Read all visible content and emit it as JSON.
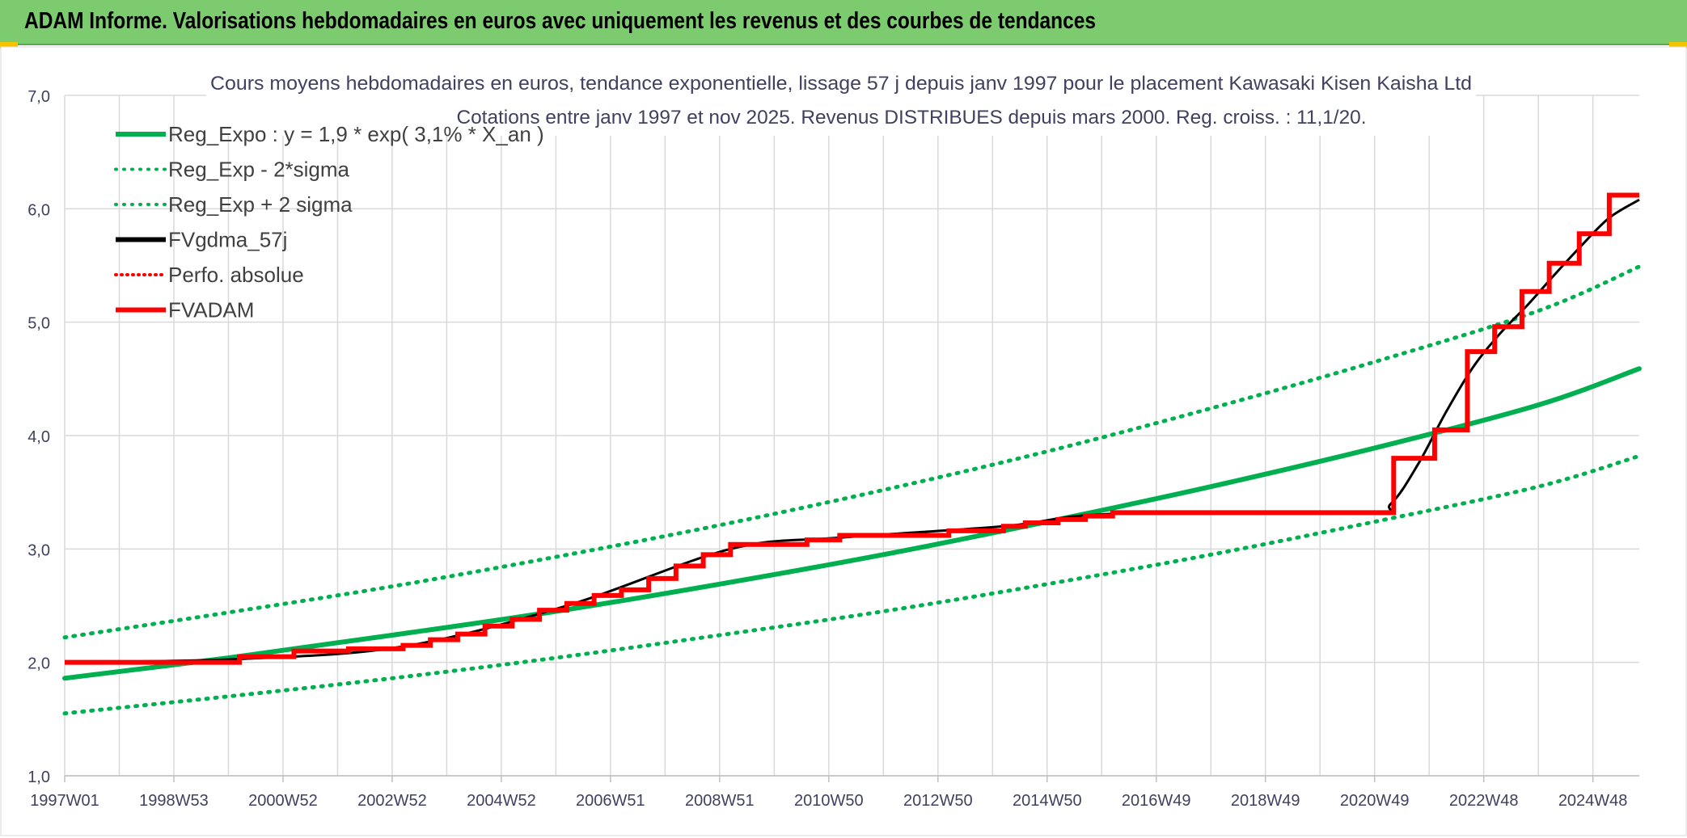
{
  "header": {
    "title": "ADAM Informe. Valorisations hebdomadaires en euros avec uniquement les revenus et des courbes de tendances"
  },
  "colors": {
    "banner": "#7ccb6e",
    "trend": "#00b050",
    "fv57": "#000000",
    "fvadam": "#ff0000",
    "grid": "#d9d9d9"
  },
  "chart_data": {
    "type": "line",
    "title": "Cours moyens hebdomadaires en euros, tendance exponentielle, lissage 57 j depuis janv 1997 pour le placement Kawasaki Kisen Kaisha Ltd",
    "subtitle": "Cotations entre janv 1997 et nov 2025. Revenus DISTRIBUES depuis mars 2000. Reg. croiss. : 11,1/20.",
    "y_ticks": [
      "1,0",
      "2,0",
      "3,0",
      "4,0",
      "5,0",
      "6,0",
      "7,0"
    ],
    "ylim": [
      1,
      7
    ],
    "xlim": [
      1997.0,
      2025.85
    ],
    "x_tick_labels": [
      "1997W01",
      "1998W53",
      "2000W52",
      "2002W52",
      "2004W52",
      "2006W51",
      "2008W51",
      "2010W50",
      "2012W50",
      "2014W50",
      "2016W49",
      "2018W49",
      "2020W49",
      "2022W48",
      "2024W48"
    ],
    "x_tick_years": [
      1997.0,
      1999.0,
      2001.0,
      2003.0,
      2005.0,
      2007.0,
      2009.0,
      2011.0,
      2013.0,
      2015.0,
      2017.0,
      2019.0,
      2021.0,
      2023.0,
      2025.0
    ],
    "grid": true,
    "legend_position": "top-left",
    "legend": [
      {
        "label": "Reg_Expo : y = 1,9 * exp( 3,1% *  X_an )",
        "style": "solid",
        "color": "#00b050"
      },
      {
        "label": "Reg_Exp - 2*sigma",
        "style": "dotted",
        "color": "#00b050"
      },
      {
        "label": "Reg_Exp + 2 sigma",
        "style": "dotted",
        "color": "#00b050"
      },
      {
        "label": "FVgdma_57j",
        "style": "solid",
        "color": "#000000"
      },
      {
        "label": "Perfo. absolue",
        "style": "dotted",
        "color": "#ff0000"
      },
      {
        "label": "FVADAM",
        "style": "solid",
        "color": "#ff0000"
      }
    ],
    "series": [
      {
        "name": "Reg_Expo : y = 1,9 * exp( 3,1% *  X_an )",
        "x": [
          1997.0,
          2000.0,
          2003.0,
          2006.0,
          2009.0,
          2012.0,
          2015.0,
          2018.0,
          2021.0,
          2024.0,
          2025.85
        ],
        "y": [
          1.86,
          2.04,
          2.24,
          2.45,
          2.69,
          2.95,
          3.24,
          3.55,
          3.89,
          4.27,
          4.59
        ]
      },
      {
        "name": "Reg_Exp - 2*sigma",
        "x": [
          1997.0,
          2000.0,
          2003.0,
          2006.0,
          2009.0,
          2012.0,
          2015.0,
          2018.0,
          2021.0,
          2024.0,
          2025.85
        ],
        "y": [
          1.55,
          1.7,
          1.86,
          2.04,
          2.24,
          2.45,
          2.69,
          2.95,
          3.24,
          3.55,
          3.82
        ]
      },
      {
        "name": "Reg_Exp + 2 sigma",
        "x": [
          1997.0,
          2000.0,
          2003.0,
          2006.0,
          2009.0,
          2012.0,
          2015.0,
          2018.0,
          2021.0,
          2024.0,
          2025.85
        ],
        "y": [
          2.22,
          2.44,
          2.67,
          2.93,
          3.21,
          3.52,
          3.86,
          4.24,
          4.65,
          5.1,
          5.49
        ]
      },
      {
        "name": "FVADAM",
        "x": [
          1997.0,
          2000.2,
          2001.2,
          2002.2,
          2003.2,
          2003.7,
          2004.2,
          2004.7,
          2005.2,
          2005.7,
          2006.2,
          2006.7,
          2007.2,
          2007.7,
          2008.2,
          2008.7,
          2009.2,
          2010.6,
          2011.2,
          2013.2,
          2014.2,
          2014.6,
          2015.2,
          2015.7,
          2016.2,
          2021.05,
          2021.35,
          2022.1,
          2022.7,
          2023.2,
          2023.7,
          2024.2,
          2024.75,
          2025.3,
          2025.85
        ],
        "y": [
          2.0,
          2.05,
          2.1,
          2.12,
          2.15,
          2.2,
          2.25,
          2.32,
          2.38,
          2.46,
          2.52,
          2.59,
          2.64,
          2.74,
          2.85,
          2.95,
          3.04,
          3.08,
          3.12,
          3.16,
          3.2,
          3.23,
          3.26,
          3.29,
          3.32,
          3.32,
          3.8,
          4.05,
          4.74,
          4.96,
          5.27,
          5.52,
          5.78,
          6.12,
          6.12
        ]
      },
      {
        "name": "FVgdma_57j",
        "x": [
          1997.0,
          2000.2,
          2003.2,
          2006.2,
          2009.2,
          2011.2,
          2014.2,
          2016.2,
          2020.8,
          2021.3,
          2021.8,
          2022.3,
          2022.8,
          2023.3,
          2023.8,
          2024.3,
          2024.8,
          2025.3,
          2025.85
        ],
        "y": [
          2.0,
          2.03,
          2.14,
          2.5,
          3.0,
          3.1,
          3.2,
          3.31,
          3.32,
          3.4,
          3.75,
          4.2,
          4.6,
          4.9,
          5.15,
          5.42,
          5.68,
          5.92,
          6.08
        ]
      }
    ]
  }
}
